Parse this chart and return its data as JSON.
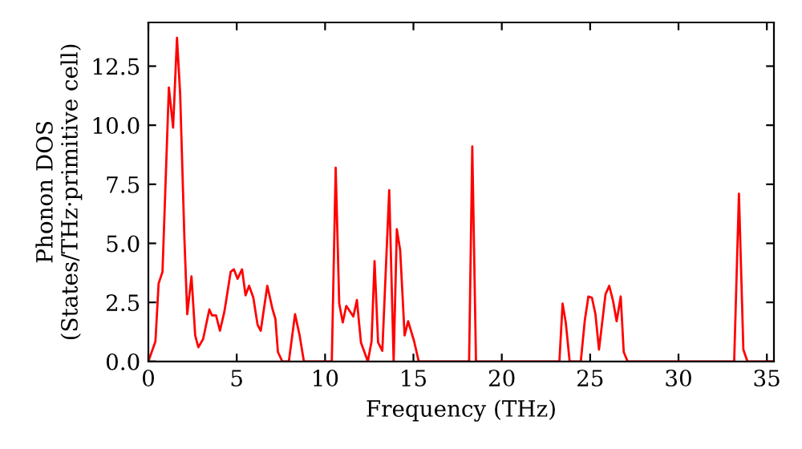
{
  "chart_data": {
    "type": "line",
    "xlabel": "Frequency (THz)",
    "ylabel": "Phonon DOS\n(States/THz·primitive cell)",
    "xlim": [
      0,
      35.4
    ],
    "ylim": [
      0,
      14.35
    ],
    "xticks": [
      0,
      5,
      10,
      15,
      20,
      25,
      30,
      35
    ],
    "yticks": [
      {
        "value": 0,
        "label": "0.0"
      },
      {
        "value": 2.5,
        "label": "2.5"
      },
      {
        "value": 5,
        "label": "5.0"
      },
      {
        "value": 7.5,
        "label": "7.5"
      },
      {
        "value": 10,
        "label": "10.0"
      },
      {
        "value": 12.5,
        "label": "12.5"
      }
    ],
    "grid": false,
    "line_style": "solid",
    "marker": "none",
    "series": [
      {
        "color": "#ff0000",
        "x": [
          0,
          0.4,
          0.58,
          0.8,
          1.16,
          1.4,
          1.62,
          1.8,
          2.04,
          2.2,
          2.44,
          2.65,
          2.83,
          3.1,
          3.45,
          3.6,
          3.83,
          4.05,
          4.3,
          4.66,
          4.84,
          5.05,
          5.3,
          5.5,
          5.7,
          5.94,
          6.18,
          6.36,
          6.73,
          7.03,
          7.19,
          7.33,
          7.58,
          7.95,
          8.3,
          8.56,
          8.8,
          10.38,
          10.6,
          10.8,
          11.0,
          11.2,
          11.6,
          11.8,
          12.03,
          12.42,
          12.63,
          12.8,
          13.0,
          13.24,
          13.63,
          13.88,
          14.06,
          14.25,
          14.5,
          14.7,
          15.04,
          15.3,
          18.15,
          18.33,
          18.54,
          23.26,
          23.44,
          23.62,
          23.84,
          24.47,
          24.7,
          24.9,
          25.1,
          25.3,
          25.5,
          25.87,
          26.08,
          26.3,
          26.5,
          26.73,
          26.9,
          27.12,
          33.15,
          33.42,
          33.67,
          33.9,
          35.4
        ],
        "values": [
          0,
          0.85,
          3.3,
          3.8,
          11.6,
          9.9,
          13.7,
          11.3,
          5.2,
          2.0,
          3.6,
          1.1,
          0.6,
          0.95,
          2.2,
          1.95,
          1.95,
          1.3,
          2.1,
          3.8,
          3.9,
          3.5,
          3.9,
          2.8,
          3.2,
          2.7,
          1.55,
          1.3,
          3.2,
          2.2,
          1.8,
          0.4,
          0,
          0,
          2.0,
          1.1,
          0,
          0,
          8.2,
          2.45,
          1.65,
          2.35,
          1.9,
          2.6,
          0.8,
          0,
          0.85,
          4.25,
          0.8,
          0.45,
          7.25,
          0,
          5.6,
          4.7,
          1.1,
          1.7,
          0.85,
          0,
          0,
          9.1,
          0,
          0,
          2.45,
          1.65,
          0,
          0,
          1.75,
          2.75,
          2.7,
          2.0,
          0.5,
          2.85,
          3.2,
          2.55,
          1.7,
          2.75,
          0.4,
          0,
          0,
          7.1,
          0.5,
          0,
          0
        ]
      }
    ]
  }
}
